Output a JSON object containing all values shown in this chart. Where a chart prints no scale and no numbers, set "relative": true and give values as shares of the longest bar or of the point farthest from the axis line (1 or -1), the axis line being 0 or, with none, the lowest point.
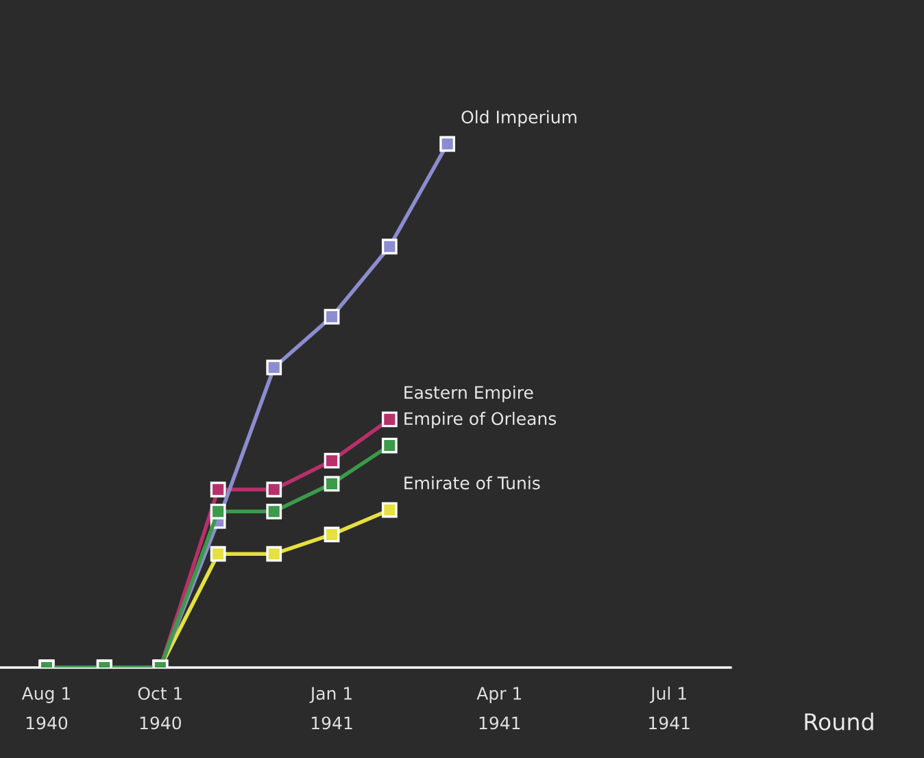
{
  "chart_data": {
    "type": "line",
    "xlabel": "Round",
    "relative": true,
    "x": [
      "1940-08-01",
      "1940-09-01",
      "1940-10-01",
      "1940-11-01",
      "1940-12-01",
      "1941-01-01",
      "1941-02-01",
      "1941-03-04"
    ],
    "xlim": [
      "1940-07-07",
      "1941-08-03"
    ],
    "xticks": [
      {
        "value": "1940-08-01",
        "label": "Aug 1\n1940"
      },
      {
        "value": "1940-10-01",
        "label": "Oct 1\n1940"
      },
      {
        "value": "1941-01-01",
        "label": "Jan 1\n1941"
      },
      {
        "value": "1941-04-01",
        "label": "Apr 1\n1941"
      },
      {
        "value": "1941-07-01",
        "label": "Jul 1\n1941"
      }
    ],
    "marker": "square",
    "grid": false,
    "legend": false,
    "series": [
      {
        "name": "Emirate of Tunis",
        "color": "#e6e040",
        "values": [
          0,
          0,
          0,
          0.217,
          0.217,
          0.254,
          0.301,
          null
        ]
      },
      {
        "name": "Eastern Empire",
        "color": "#b8306a",
        "values": [
          0,
          0,
          0,
          0.34,
          0.34,
          0.395,
          0.474,
          null
        ]
      },
      {
        "name": "Old Imperium",
        "color": "#8c8cd0",
        "values": [
          0,
          0,
          0,
          0.28,
          0.573,
          0.67,
          0.804,
          1
        ]
      },
      {
        "name": "Empire of Orleans",
        "color": "#3c9a4a",
        "values": [
          0,
          0,
          0,
          0.298,
          0.298,
          0.351,
          0.424,
          null
        ]
      }
    ]
  }
}
